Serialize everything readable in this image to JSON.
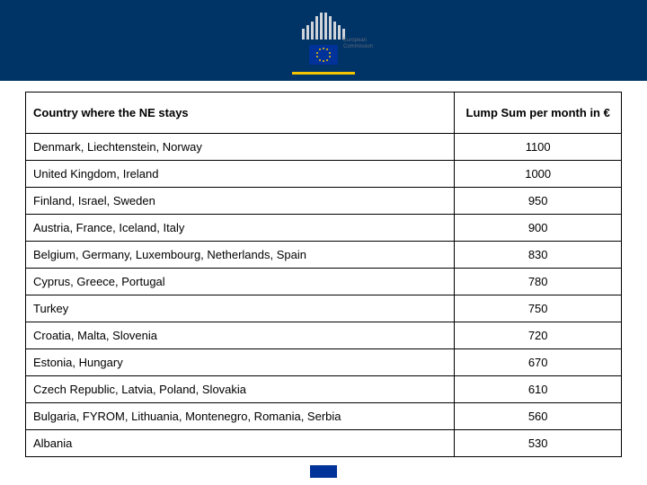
{
  "header": {
    "brand_text_line1": "European",
    "brand_text_line2": "Commission",
    "band_color": "#003366",
    "flag_bg": "#003399",
    "accent_color": "#f5c400"
  },
  "table": {
    "type": "table",
    "border_color": "#000000",
    "background_color": "#ffffff",
    "header_fontsize": 13,
    "body_fontsize": 13,
    "columns": [
      {
        "key": "country",
        "label": "Country where the NE stays",
        "width_pct": 72,
        "align": "left"
      },
      {
        "key": "amount",
        "label": "Lump Sum  per month in €",
        "width_pct": 28,
        "align": "center"
      }
    ],
    "rows": [
      {
        "country": "Denmark, Liechtenstein, Norway",
        "amount": "1100"
      },
      {
        "country": "United Kingdom, Ireland",
        "amount": "1000"
      },
      {
        "country": "Finland, Israel, Sweden",
        "amount": "950"
      },
      {
        "country": "Austria, France, Iceland, Italy",
        "amount": "900"
      },
      {
        "country": "Belgium, Germany, Luxembourg, Netherlands, Spain",
        "amount": "830"
      },
      {
        "country": "Cyprus, Greece, Portugal",
        "amount": "780"
      },
      {
        "country": "Turkey",
        "amount": "750"
      },
      {
        "country": "Croatia, Malta, Slovenia",
        "amount": "720"
      },
      {
        "country": "Estonia, Hungary",
        "amount": "670"
      },
      {
        "country": "Czech Republic, Latvia, Poland, Slovakia",
        "amount": "610"
      },
      {
        "country": "Bulgaria, FYROM, Lithuania, Montenegro, Romania, Serbia",
        "amount": "560"
      },
      {
        "country": "Albania",
        "amount": "530"
      }
    ]
  }
}
